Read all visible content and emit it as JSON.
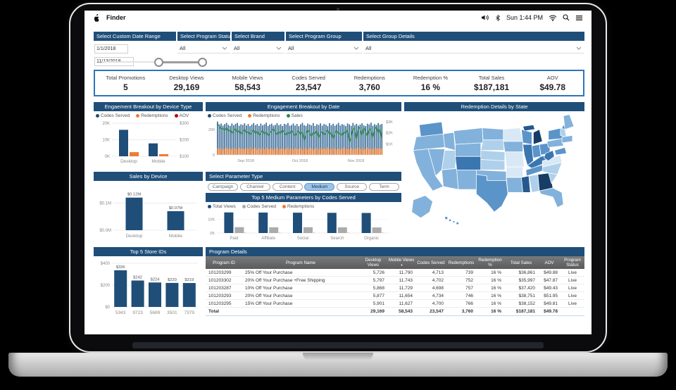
{
  "colors": {
    "accent": "#1F4E79",
    "border_blue": "#2E75B6",
    "orange": "#ED7D31",
    "red": "#C00000",
    "green": "#278C3C",
    "gray_bar": "#ABABAB",
    "bar_steel": "#41709B"
  },
  "menu_bar": {
    "app_name": "Finder",
    "time": "Sun 1:44 PM"
  },
  "filters": {
    "date_range": {
      "title": "Select Custom Date Range",
      "start": "1/1/2018",
      "end": "11/13/2018"
    },
    "program_status": {
      "title": "Select Program Status",
      "value": "All"
    },
    "brand": {
      "title": "Select Brand",
      "value": "All"
    },
    "program_group": {
      "title": "Select Program Group",
      "value": "All"
    },
    "group_details": {
      "title": "Select Group Details",
      "value": "All"
    }
  },
  "kpis": [
    {
      "label": "Total Promotions",
      "value": "5"
    },
    {
      "label": "Desktop Views",
      "value": "29,169"
    },
    {
      "label": "Mobile Views",
      "value": "58,543"
    },
    {
      "label": "Codes Served",
      "value": "23,547"
    },
    {
      "label": "Redemptions",
      "value": "3,760"
    },
    {
      "label": "Redemption %",
      "value": "16 %"
    },
    {
      "label": "Total Sales",
      "value": "$187,181"
    },
    {
      "label": "AOV",
      "value": "$49.78"
    }
  ],
  "parameter_selector": {
    "title": "Select Parameter Type",
    "options": [
      "Campaign",
      "Channel",
      "Content",
      "Medium",
      "Source",
      "Term"
    ],
    "selected": "Medium"
  },
  "chart_data": [
    {
      "type": "grouped_bar",
      "title": "Engaement Breakout by Device Type",
      "categories": [
        "Desktop",
        "Mobile"
      ],
      "series": [
        {
          "name": "Codes Served",
          "color": "#1F4E79",
          "values": [
            16000,
            7800
          ]
        },
        {
          "name": "Redemptions",
          "color": "#ED7D31",
          "values": [
            2500,
            1300
          ]
        },
        {
          "name": "AOV",
          "color": "#C00000",
          "values": []
        }
      ],
      "y_left": {
        "ticks": [
          "0K",
          "10K",
          "20K"
        ],
        "max": 20000
      },
      "y_right": {
        "ticks": [
          "$100",
          "$200",
          "$300"
        ]
      }
    },
    {
      "type": "combo",
      "title": "Engagement Breakout by Date",
      "x_axis_ticks": [
        "Sep 2018",
        "Oct 2018",
        "Nov 2018"
      ],
      "x_tick_index": [
        16,
        46,
        77
      ],
      "y_left": {
        "ticks": [
          "0",
          "200"
        ],
        "tick_values": [
          0,
          200
        ],
        "max": 260
      },
      "y_right": {
        "ticks": [
          "$1K",
          "$2K",
          "$3K"
        ],
        "tick_values": [
          1000,
          2000,
          3000
        ],
        "max": 3000
      },
      "series": [
        {
          "name": "Codes Served",
          "color": "#1F4E79",
          "bar_color": "#41709B",
          "values": [
            262,
            238,
            246,
            230,
            242,
            252,
            236,
            228,
            247,
            233,
            244,
            251,
            229,
            240,
            236,
            248,
            231,
            243,
            226,
            238,
            250,
            234,
            242,
            228,
            246,
            232,
            240,
            253,
            227,
            239,
            245,
            230,
            236,
            249,
            233,
            241,
            227,
            244,
            238,
            251,
            229,
            235,
            247,
            231,
            243,
            226,
            240,
            252,
            234,
            228,
            246,
            238,
            232,
            250,
            227,
            241,
            235,
            248,
            230,
            243,
            237,
            226,
            249,
            233,
            245,
            229,
            239,
            252,
            231,
            242,
            236,
            227,
            247,
            240,
            228,
            251,
            234,
            244,
            230,
            238,
            248,
            232,
            226,
            245,
            239,
            253,
            229,
            241,
            235,
            250,
            237,
            243
          ]
        },
        {
          "name": "Redemptions",
          "color": "#ED7D31",
          "values": [
            52,
            47,
            55,
            43,
            49,
            57,
            45,
            51,
            42,
            54,
            48,
            44,
            56,
            46,
            50,
            43,
            53,
            47,
            58,
            44,
            49,
            55,
            42,
            51,
            46,
            54,
            43,
            57,
            48,
            45,
            52,
            41,
            50,
            56,
            44,
            47,
            53,
            42,
            49,
            58,
            45,
            51,
            43,
            55,
            48,
            46,
            54,
            41,
            52,
            47,
            44,
            57,
            50,
            43,
            49,
            56,
            42,
            53,
            46,
            51,
            44,
            58,
            47,
            45,
            55,
            48,
            43,
            52,
            41,
            50,
            57,
            46,
            49,
            44,
            54,
            42,
            51,
            47,
            56,
            45,
            53,
            43,
            48,
            58,
            46,
            50,
            44,
            55,
            49,
            52,
            47,
            51
          ]
        },
        {
          "name": "Sales",
          "color": "#278C3C",
          "values": [
            2850,
            2600,
            2300,
            2450,
            2200,
            2500,
            2100,
            2300,
            1900,
            2200,
            2400,
            2000,
            2250,
            1850,
            2100,
            2350,
            1950,
            2150,
            1800,
            2050,
            2300,
            1900,
            2200,
            1750,
            2000,
            2250,
            1850,
            2100,
            1700,
            1950,
            2200,
            2400,
            2050,
            1800,
            2150,
            1900,
            2300,
            2000,
            1750,
            2100,
            1850,
            2250,
            1950,
            1700,
            2050,
            2200,
            1800,
            2150,
            1250,
            1900,
            2300,
            2000,
            1650,
            2100,
            1850,
            2250,
            1500,
            1950,
            2150,
            1750,
            2050,
            2300,
            1800,
            2100,
            1400,
            1950,
            2250,
            1850,
            2000,
            1700,
            2150,
            1900,
            2350,
            1100,
            1600,
            2450,
            2250,
            1300,
            2550,
            2350,
            1700,
            2500,
            2100,
            1650,
            2400,
            2200,
            1500,
            2300,
            2600,
            1900,
            2450,
            1350
          ]
        }
      ]
    },
    {
      "type": "bar",
      "title": "Sales by Device",
      "categories": [
        "Desktop",
        "Mobile"
      ],
      "values": [
        0.12,
        0.07
      ],
      "labels": [
        "$0.12M",
        "$0.07M"
      ],
      "y_ticks": [
        "$0.0M",
        "$0.1M"
      ],
      "tick_values": [
        0,
        0.1
      ],
      "ymax": 0.14,
      "color": "#1F4E79"
    },
    {
      "type": "bar",
      "title": "Top 5 Store IDs",
      "categories": [
        "5343",
        "9723",
        "5689",
        "3501",
        "7379"
      ],
      "values": [
        336,
        242,
        224,
        220,
        219
      ],
      "labels": [
        "$336",
        "$242",
        "$224",
        "$220",
        "$219"
      ],
      "y_ticks": [
        "$0",
        "$200",
        "$400"
      ],
      "tick_values": [
        0,
        200,
        400
      ],
      "ymax": 400,
      "color": "#1F4E79"
    },
    {
      "type": "grouped_bar",
      "title": "Top 5 Medium Parameters by Codes Served",
      "categories": [
        "Paid",
        "Affiliate",
        "Social",
        "Search",
        "Organic"
      ],
      "series": [
        {
          "name": "Total Views",
          "color": "#1F4E79",
          "values": [
            15100,
            15000,
            14900,
            14800,
            14700
          ]
        },
        {
          "name": "Codes Served",
          "color": "#ABABAB",
          "values": [
            4300,
            4200,
            4250,
            4150,
            4100
          ]
        },
        {
          "name": "Redemptions",
          "color": "#ED7D31",
          "values": [
            250,
            245,
            240,
            238,
            235
          ]
        }
      ],
      "y_left": {
        "ticks": [
          "0K",
          "10K"
        ],
        "tick_values": [
          0,
          10000
        ],
        "max": 16000
      }
    },
    {
      "type": "choropleth",
      "title": "Redemption Details by State",
      "palette": {
        "L1": "#D9E8F5",
        "L2": "#AFD0EA",
        "L3": "#82B2DB",
        "L4": "#5B94C9",
        "L5": "#3A76B0",
        "L6": "#25598C",
        "L7": "#173D66"
      },
      "states": {
        "WA": "L4",
        "OR": "L3",
        "CA": "L3",
        "ID": "L3",
        "NV": "L3",
        "UT": "L2",
        "AZ": "L3",
        "MT": "L3",
        "WY": "L3",
        "CO": "L5",
        "NM": "L3",
        "ND": "L3",
        "SD": "L2",
        "NE": "L2",
        "KS": "L2",
        "OK": "L3",
        "TX": "L4",
        "MN": "L1",
        "IA": "L3",
        "MO": "L1",
        "AR": "L1",
        "LA": "L3",
        "WI": "L4",
        "IL": "L5",
        "MS": "L6",
        "MIUP": "L6",
        "MI": "L7",
        "IN": "L4",
        "OH": "L4",
        "KY": "L5",
        "TN": "L4",
        "AL": "L2",
        "GA": "L7",
        "FL": "L3",
        "SC": "L2",
        "NC": "L2",
        "VA": "L1",
        "WV": "L5",
        "PA": "L3",
        "NY": "L4",
        "MD": "L4",
        "ME": "L3",
        "VTNH": "L2",
        "MACT": "L3",
        "AK": "L3",
        "HI": "L4"
      }
    }
  ],
  "program_table": {
    "title": "Program Details",
    "columns": [
      "Program ID",
      "Program Name",
      "Desktop Views",
      "Mobile Views",
      "Codes Served",
      "Redemptions",
      "Redemption %",
      "Total Sales",
      "AOV",
      "Program Status"
    ],
    "sorted_by": "Mobile Views",
    "rows": [
      [
        "101203299",
        "25% Off Your Purchase",
        "5,726",
        "11,790",
        "4,713",
        "739",
        "16 %",
        "$36,861",
        "$49.88",
        "Live"
      ],
      [
        "101203302",
        "20% Off Your Purchase +Free Shipping",
        "5,797",
        "11,743",
        "4,702",
        "752",
        "16 %",
        "$35,997",
        "$47.87",
        "Live"
      ],
      [
        "101203287",
        "10% Off Your Purchase",
        "5,868",
        "11,729",
        "4,698",
        "757",
        "16 %",
        "$37,420",
        "$49.43",
        "Live"
      ],
      [
        "101203293",
        "20% Off Your Purchase",
        "5,877",
        "11,654",
        "4,734",
        "746",
        "16 %",
        "$38,751",
        "$51.95",
        "Live"
      ],
      [
        "101203295",
        "15% Off Your Purchase",
        "5,901",
        "11,627",
        "4,700",
        "766",
        "16 %",
        "$38,152",
        "$49.81",
        "Live"
      ]
    ],
    "total": [
      "Total",
      "",
      "29,169",
      "58,543",
      "23,547",
      "3,760",
      "16 %",
      "$187,181",
      "$49.78",
      ""
    ]
  }
}
